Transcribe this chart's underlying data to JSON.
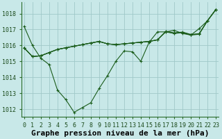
{
  "bg_color": "#c8e8e8",
  "grid_color": "#a0c8c8",
  "line_color": "#1a5c1a",
  "ylim": [
    1011.5,
    1018.7
  ],
  "yticks": [
    1012,
    1013,
    1014,
    1015,
    1016,
    1017,
    1018
  ],
  "xlim": [
    -0.3,
    23.3
  ],
  "xticks": [
    0,
    1,
    2,
    3,
    4,
    5,
    6,
    7,
    8,
    9,
    10,
    11,
    12,
    13,
    14,
    15,
    16,
    17,
    18,
    19,
    20,
    21,
    22,
    23
  ],
  "xlabel": "Graphe pression niveau de la mer (hPa)",
  "series1": [
    1017.2,
    1016.0,
    1015.2,
    1014.8,
    1013.2,
    1012.6,
    1011.8,
    1012.1,
    1012.4,
    1013.3,
    1014.1,
    1015.0,
    1015.65,
    1015.6,
    1015.0,
    1016.2,
    1016.85,
    1016.85,
    1016.95,
    1016.75,
    1016.65,
    1017.05,
    1017.55,
    1018.25
  ],
  "series2": [
    1015.85,
    1015.3,
    1015.35,
    1015.55,
    1015.75,
    1015.85,
    1015.95,
    1016.05,
    1016.15,
    1016.25,
    1016.1,
    1016.05,
    1016.1,
    1016.15,
    1016.2,
    1016.25,
    1016.35,
    1016.85,
    1016.75,
    1016.8,
    1016.65,
    1016.7,
    1017.55,
    1018.25
  ],
  "series3": [
    1015.85,
    1015.3,
    1015.35,
    1015.55,
    1015.75,
    1015.85,
    1015.95,
    1016.05,
    1016.15,
    1016.25,
    1016.1,
    1016.05,
    1016.1,
    1016.15,
    1016.2,
    1016.25,
    1016.35,
    1016.87,
    1016.77,
    1016.82,
    1016.67,
    1016.72,
    1017.55,
    1018.25
  ],
  "series4": [
    1015.85,
    1015.3,
    1015.35,
    1015.55,
    1015.75,
    1015.85,
    1015.95,
    1016.05,
    1016.15,
    1016.25,
    1016.1,
    1016.05,
    1016.1,
    1016.15,
    1016.2,
    1016.25,
    1016.35,
    1016.89,
    1016.79,
    1016.84,
    1016.69,
    1016.74,
    1017.55,
    1018.25
  ],
  "tick_fontsize": 6,
  "label_fontsize": 8
}
